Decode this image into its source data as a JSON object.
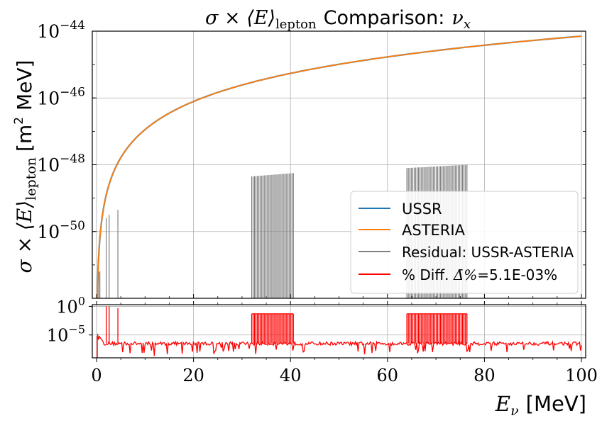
{
  "chart_data": [
    {
      "type": "line",
      "panel": "main",
      "title": "σ × ⟨E⟩lepton Comparison: νx",
      "title_parts": {
        "sigma": "σ × ⟨E⟩",
        "sub": "lepton",
        "text": "Comparison:",
        "nu": "ν",
        "nu_sub": "x"
      },
      "ylabel_parts": {
        "sigma": "σ × ⟨E⟩",
        "sub": "lepton",
        "units": "[m",
        "sup": "2",
        "units_end": " MeV]"
      },
      "xlim": [
        0,
        100
      ],
      "yscale": "log",
      "ylim_exp": [
        -52,
        -44
      ],
      "yticks": [
        {
          "base": "10",
          "exp": "−44",
          "value_exp": -44
        },
        {
          "base": "10",
          "exp": "−46",
          "value_exp": -46
        },
        {
          "base": "10",
          "exp": "−48",
          "value_exp": -48
        },
        {
          "base": "10",
          "exp": "−50",
          "value_exp": -50
        }
      ],
      "grid": true,
      "legend_position": "lower-right",
      "series": [
        {
          "name": "USSR",
          "color": "#1f77b4",
          "style": "line",
          "curve": "power",
          "x_range": [
            0.2,
            100
          ],
          "y_at_100_exp": -44.15,
          "y_at_0_2_exp": -51.7
        },
        {
          "name": "ASTERIA",
          "color": "#ff7f0e",
          "style": "line",
          "curve": "power",
          "x_range": [
            0.2,
            100
          ],
          "y_at_100_exp": -44.15,
          "y_at_0_2_exp": -51.7
        },
        {
          "name": "Residual: USSR-ASTERIA",
          "color": "#808080",
          "style": "spikes",
          "spike_groups": [
            {
              "x": [
                2.0,
                2.6,
                4.4
              ],
              "y_exp": [
                -49.6,
                -49.5,
                -49.35
              ]
            },
            {
              "x_start": 32.0,
              "x_end": 40.6,
              "count": 30,
              "y_exp_start": -48.35,
              "y_exp_end": -48.25
            },
            {
              "x_start": 64.0,
              "x_end": 76.4,
              "count": 42,
              "y_exp_start": -48.1,
              "y_exp_end": -48.0
            }
          ]
        },
        {
          "name": "% Diff. ",
          "name_math": "Δ̄%",
          "name_value": "=5.1E-03%",
          "color": "#ff0000",
          "style": "line"
        }
      ]
    },
    {
      "type": "line",
      "panel": "residual",
      "xlabel_parts": {
        "var": "E",
        "sub": "ν",
        "units": "[MeV]"
      },
      "xlim": [
        0,
        100
      ],
      "xticks": [
        "0",
        "20",
        "40",
        "60",
        "80",
        "100"
      ],
      "xtick_values": [
        0,
        20,
        40,
        60,
        80,
        100
      ],
      "yscale": "log",
      "ylim_exp": [
        -9,
        0.3
      ],
      "yticks": [
        {
          "base": "10",
          "exp": "0",
          "value_exp": 0
        },
        {
          "base": "10",
          "exp": "−5",
          "value_exp": -5
        }
      ],
      "grid": true,
      "series": [
        {
          "name": "% Diff.",
          "color": "#ff0000",
          "baseline_exp": -6.5,
          "noise_exp": 0.6,
          "spike_groups": [
            {
              "x": [
                2.0,
                2.6,
                4.4
              ],
              "y_exp": [
                0.0,
                0.0,
                -0.3
              ]
            },
            {
              "x_start": 32.0,
              "x_end": 40.6,
              "count": 30,
              "y_exp": -1.3
            },
            {
              "x_start": 64.0,
              "x_end": 76.4,
              "count": 42,
              "y_exp": -1.3
            }
          ]
        }
      ]
    }
  ]
}
